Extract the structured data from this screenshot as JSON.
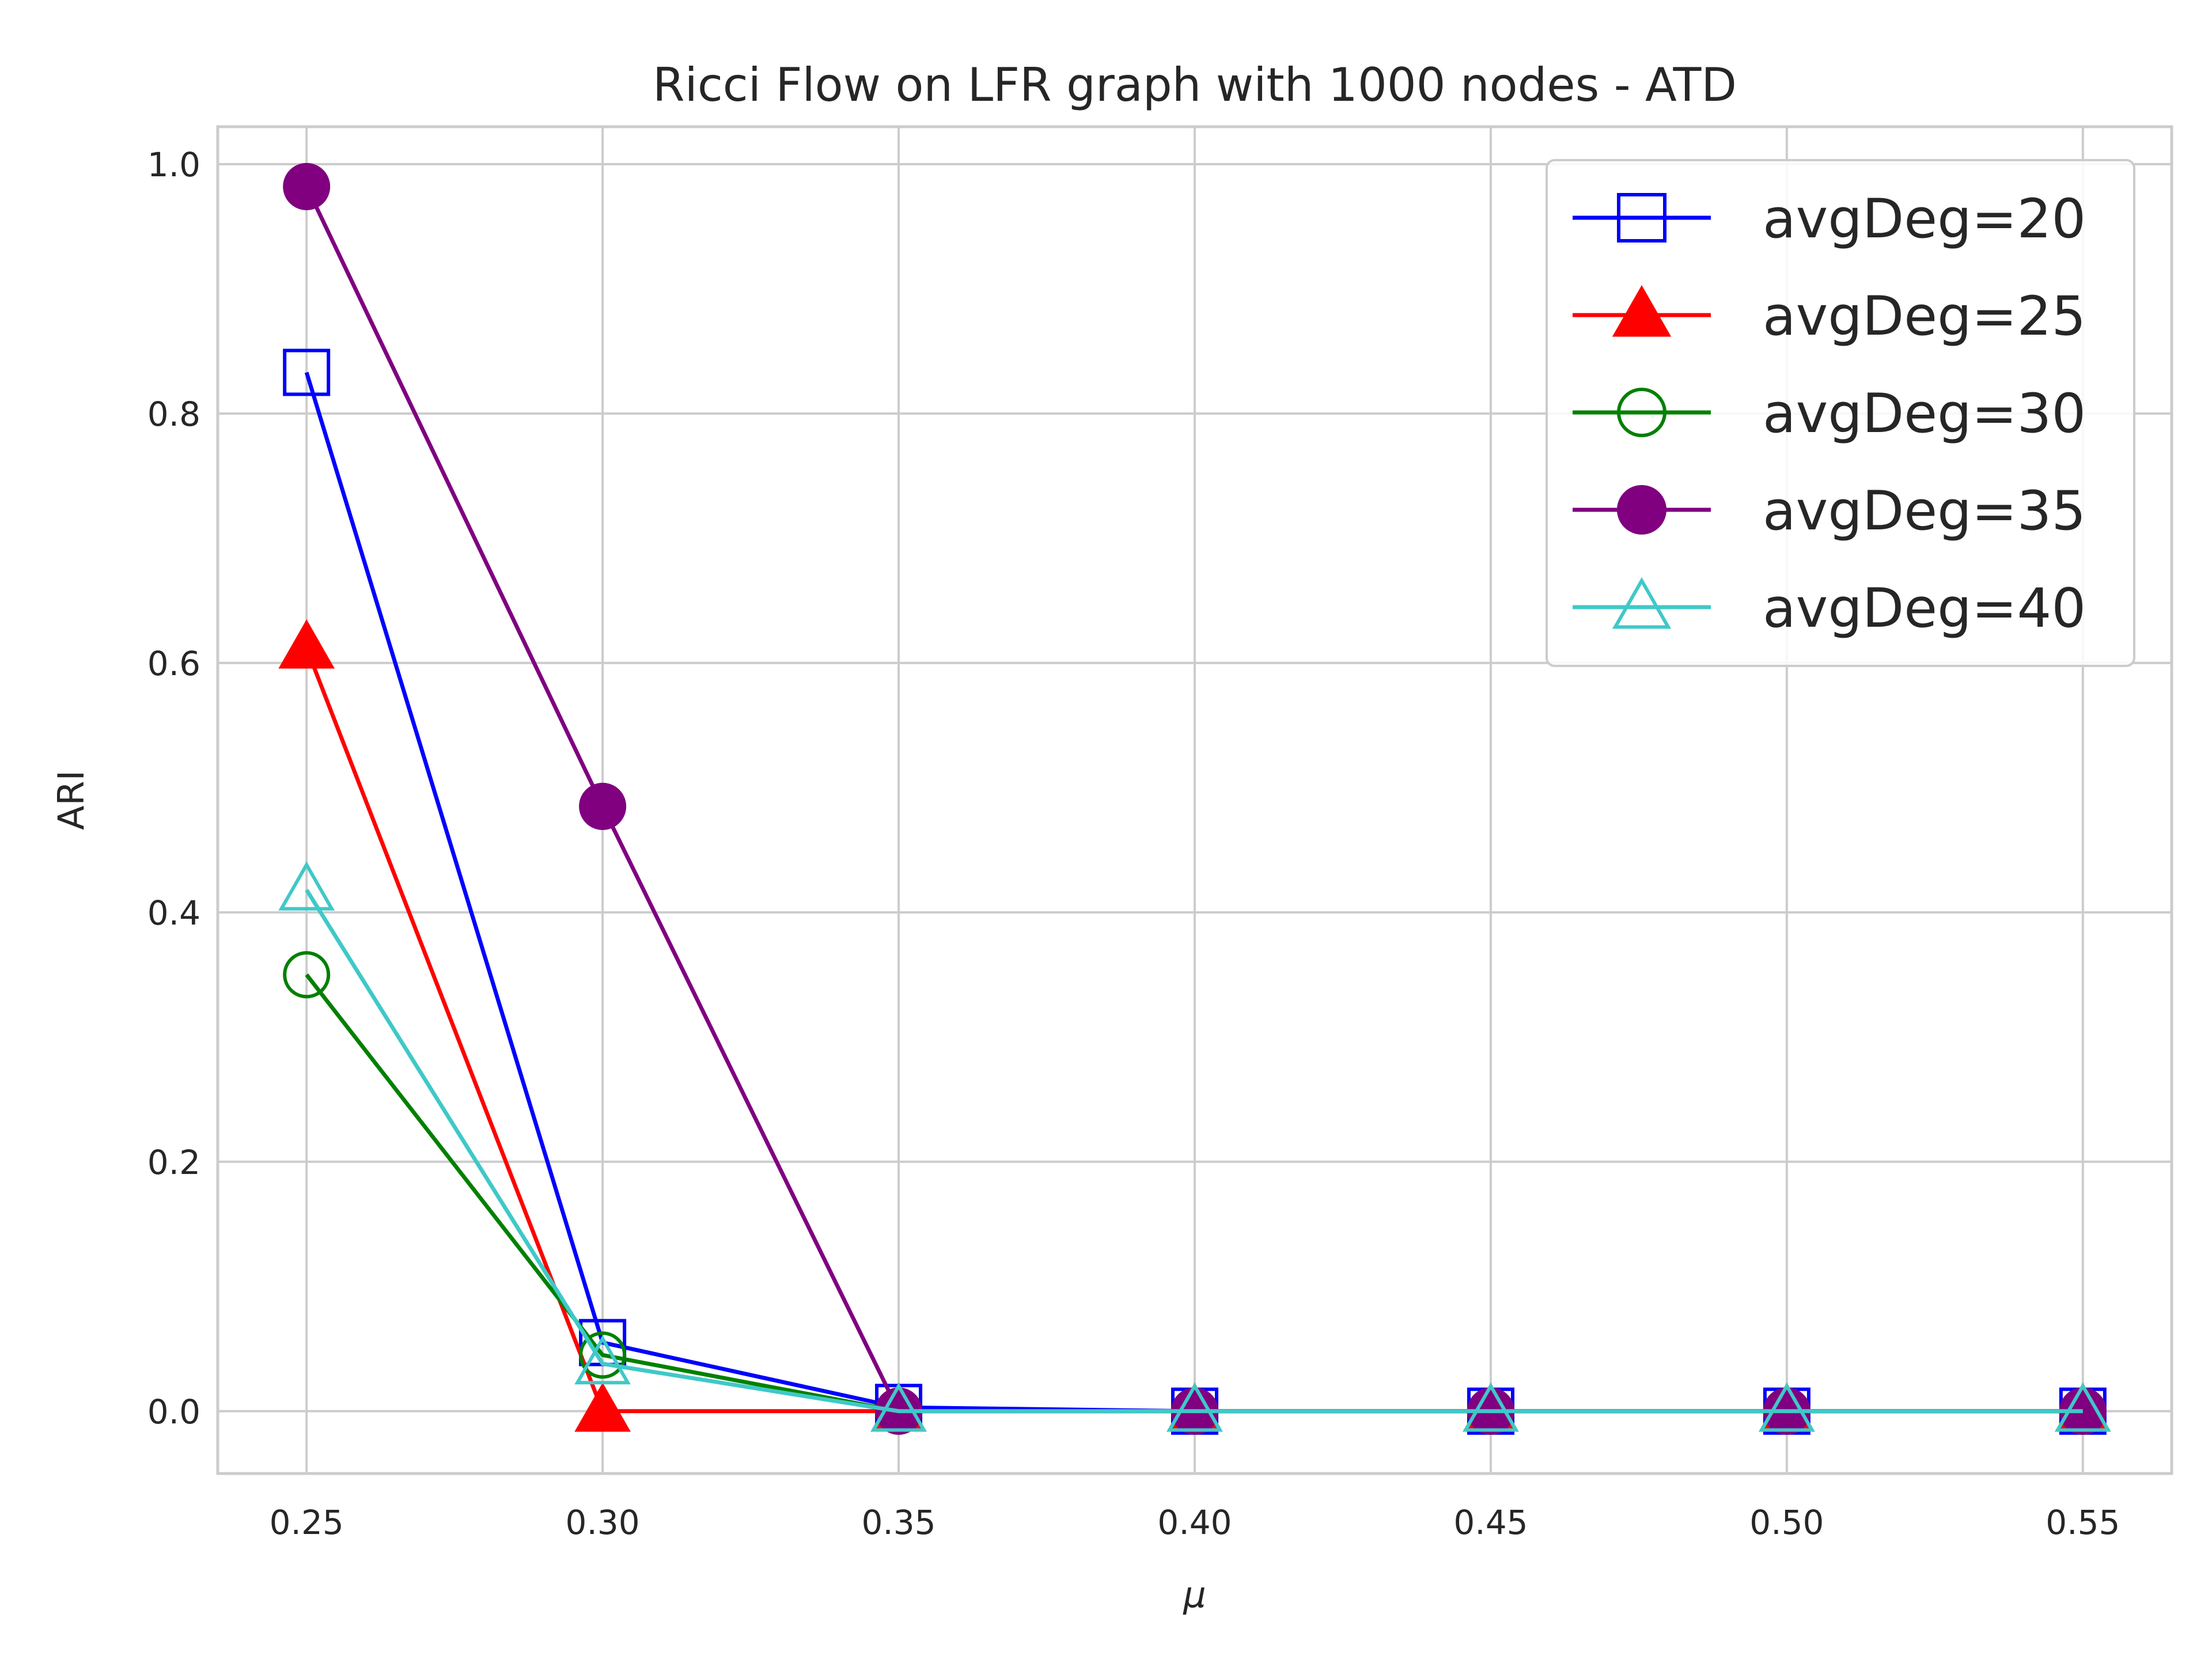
{
  "chart_data": {
    "type": "line",
    "title": "Ricci Flow on LFR graph with 1000 nodes - ATD",
    "xlabel": "μ",
    "ylabel": "ARI",
    "x": [
      0.25,
      0.3,
      0.35,
      0.4,
      0.45,
      0.5,
      0.55
    ],
    "x_tick_labels": [
      "0.25",
      "0.30",
      "0.35",
      "0.40",
      "0.45",
      "0.50",
      "0.55"
    ],
    "y_ticks": [
      0.0,
      0.2,
      0.4,
      0.6,
      0.8,
      1.0
    ],
    "y_tick_labels": [
      "0.0",
      "0.2",
      "0.4",
      "0.6",
      "0.8",
      "1.0"
    ],
    "xlim": [
      0.235,
      0.565
    ],
    "ylim": [
      -0.05,
      1.03
    ],
    "grid": true,
    "legend_position": "top-right",
    "series": [
      {
        "name": "avgDeg=20",
        "color": "#0000ff",
        "marker": "square-open",
        "values": [
          0.833,
          0.055,
          0.003,
          0.0,
          0.0,
          0.0,
          0.0
        ]
      },
      {
        "name": "avgDeg=25",
        "color": "#ff0000",
        "marker": "triangle-filled",
        "values": [
          0.612,
          0.0,
          0.0,
          0.0,
          0.0,
          0.0,
          0.0
        ]
      },
      {
        "name": "avgDeg=30",
        "color": "#008000",
        "marker": "circle-open",
        "values": [
          0.35,
          0.045,
          0.0,
          0.0,
          0.0,
          0.0,
          0.0
        ]
      },
      {
        "name": "avgDeg=35",
        "color": "#800080",
        "marker": "circle-filled",
        "values": [
          0.982,
          0.485,
          0.0,
          0.0,
          0.0,
          0.0,
          0.0
        ]
      },
      {
        "name": "avgDeg=40",
        "color": "#40c8c8",
        "marker": "triangle-open",
        "values": [
          0.418,
          0.038,
          0.0,
          0.0,
          0.0,
          0.0,
          0.0
        ]
      }
    ]
  }
}
